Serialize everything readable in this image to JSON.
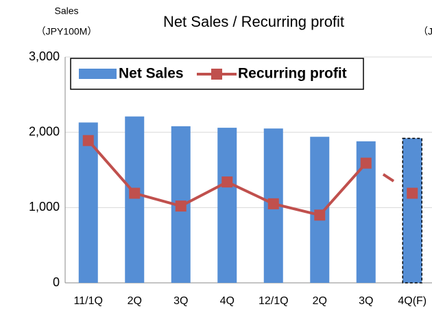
{
  "chart_data": {
    "type": "bar-line",
    "title": "Net Sales / Recurring profit",
    "y_label": "Sales",
    "y_unit": "（JPY100M）",
    "y2_label": "（J",
    "categories": [
      "11/1Q",
      "2Q",
      "3Q",
      "4Q",
      "12/1Q",
      "2Q",
      "3Q",
      "4Q(F)"
    ],
    "series": [
      {
        "name": "Net Sales",
        "type": "bar",
        "color": "#558ed5",
        "values": [
          2130,
          2210,
          2080,
          2060,
          2050,
          1940,
          1880,
          1920
        ],
        "dashed_last": true
      },
      {
        "name": "Recurring profit",
        "type": "line",
        "color": "#c0504d",
        "values": [
          1890,
          1190,
          1020,
          1340,
          1050,
          900,
          1590,
          1190
        ],
        "dashed_last": true
      }
    ],
    "ylim": [
      0,
      3000
    ],
    "yticks": [
      0,
      {
        "value": 1000,
        "label": "1,000"
      },
      {
        "value": 2000,
        "label": "2,000"
      },
      {
        "value": 3000,
        "label": "3,000"
      }
    ],
    "grid": true
  }
}
